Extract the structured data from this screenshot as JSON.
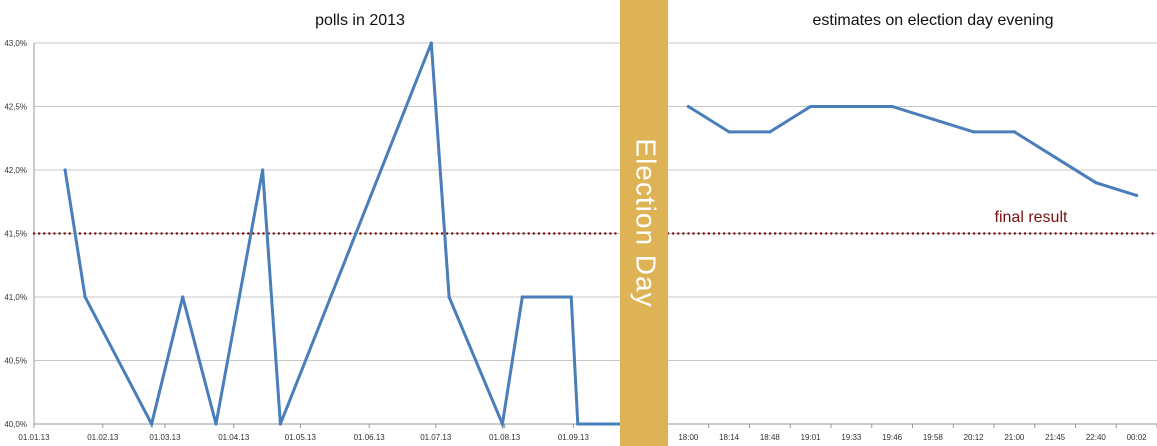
{
  "chart_data": [
    {
      "type": "line",
      "title": "polls in 2013",
      "xlabel": "",
      "ylabel": "",
      "ylim": [
        40.0,
        43.0
      ],
      "y_ticks": [
        "40,0%",
        "40,5%",
        "41,0%",
        "41,5%",
        "42,0%",
        "42,5%",
        "43,0%"
      ],
      "x_tick_labels": [
        "01.01.13",
        "01.02.13",
        "01.03.13",
        "01.04.13",
        "01.05.13",
        "01.06.13",
        "01.07.13",
        "01.08.13",
        "01.09.13"
      ],
      "x_range": [
        "2013-01-01",
        "2013-09-22"
      ],
      "grid": true,
      "series": [
        {
          "color": "#4a7ebb",
          "points": [
            {
              "x": "2013-01-15",
              "y": 42.0
            },
            {
              "x": "2013-01-24",
              "y": 41.0
            },
            {
              "x": "2013-02-23",
              "y": 40.0
            },
            {
              "x": "2013-03-09",
              "y": 41.0
            },
            {
              "x": "2013-03-24",
              "y": 40.0
            },
            {
              "x": "2013-04-14",
              "y": 42.0
            },
            {
              "x": "2013-04-22",
              "y": 40.0
            },
            {
              "x": "2013-06-29",
              "y": 43.0
            },
            {
              "x": "2013-07-07",
              "y": 41.0
            },
            {
              "x": "2013-07-31",
              "y": 40.0
            },
            {
              "x": "2013-08-09",
              "y": 41.0
            },
            {
              "x": "2013-08-31",
              "y": 41.0
            },
            {
              "x": "2013-09-03",
              "y": 40.0
            },
            {
              "x": "2013-09-22",
              "y": 40.0
            }
          ]
        }
      ]
    },
    {
      "type": "line",
      "title": "estimates on election day evening",
      "xlabel": "",
      "ylabel": "",
      "ylim": [
        40.0,
        43.0
      ],
      "categories": [
        "18:00",
        "18:14",
        "18:48",
        "19:01",
        "19:33",
        "19:46",
        "19:58",
        "20:12",
        "21:00",
        "21:45",
        "22:40",
        "00:02"
      ],
      "grid": true,
      "series": [
        {
          "color": "#4a7ebb",
          "values": [
            42.5,
            42.3,
            42.3,
            42.5,
            42.5,
            42.5,
            42.4,
            42.3,
            42.3,
            42.1,
            41.9,
            41.8
          ]
        }
      ]
    }
  ],
  "reference_line": {
    "value": 41.5,
    "label": "final result",
    "color": "#7b1010"
  },
  "election_day_band": {
    "label": "Election Day",
    "color": "#ddb356"
  }
}
